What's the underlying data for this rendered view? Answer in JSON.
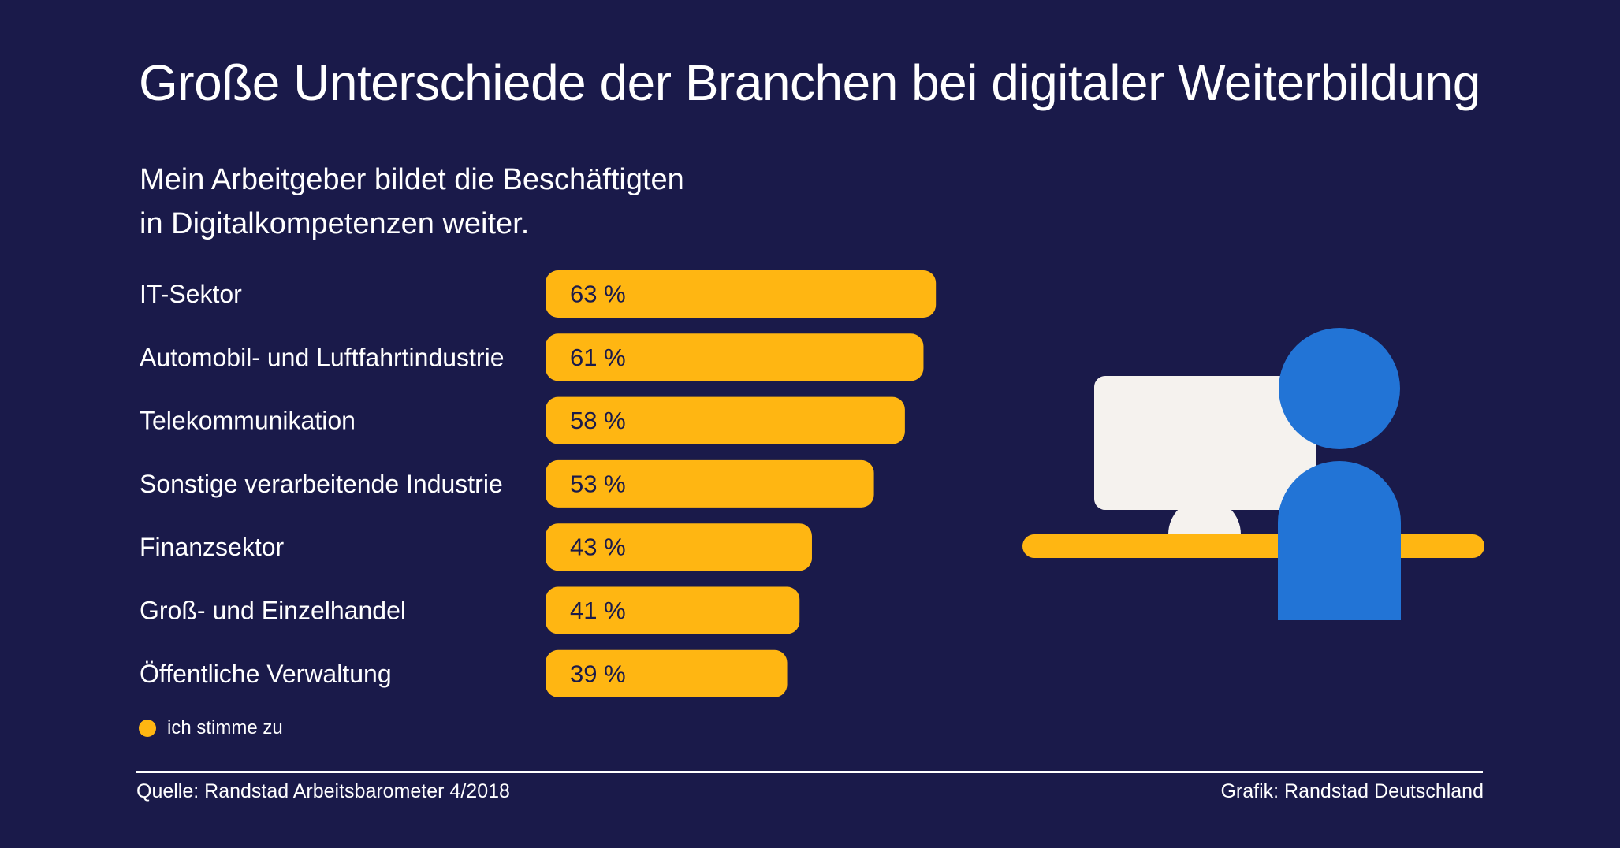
{
  "title": "Große Unterschiede der Branchen bei digitaler Weiterbildung",
  "subtitle_lines": [
    "Mein Arbeitgeber bildet die Beschäftigten",
    "in Digitalkompetenzen weiter."
  ],
  "legend": {
    "label": "ich stimme zu",
    "color": "#ffb612"
  },
  "footer": {
    "source": "Quelle: Randstad Arbeitsbarometer 4/2018",
    "credit": "Grafik: Randstad Deutschland"
  },
  "colors": {
    "background": "#1a1a4a",
    "bar": "#ffb612",
    "person": "#2274d6",
    "monitor": "#f5f2ee"
  },
  "chart_data": {
    "type": "bar",
    "orientation": "horizontal",
    "categories": [
      "IT-Sektor",
      "Automobil- und Luftfahrtindustrie",
      "Telekommunikation",
      "Sonstige verarbeitende Industrie",
      "Finanzsektor",
      "Groß- und Einzelhandel",
      "Öffentliche Verwaltung"
    ],
    "values": [
      63,
      61,
      58,
      53,
      43,
      41,
      39
    ],
    "value_labels": [
      "63 %",
      "61 %",
      "58 %",
      "53 %",
      "43 %",
      "41 %",
      "39 %"
    ],
    "series": [
      {
        "name": "ich stimme zu",
        "values": [
          63,
          61,
          58,
          53,
          43,
          41,
          39
        ]
      }
    ],
    "unit": "%",
    "xlim": [
      0,
      100
    ],
    "grid": false,
    "legend_position": "bottom-left"
  }
}
